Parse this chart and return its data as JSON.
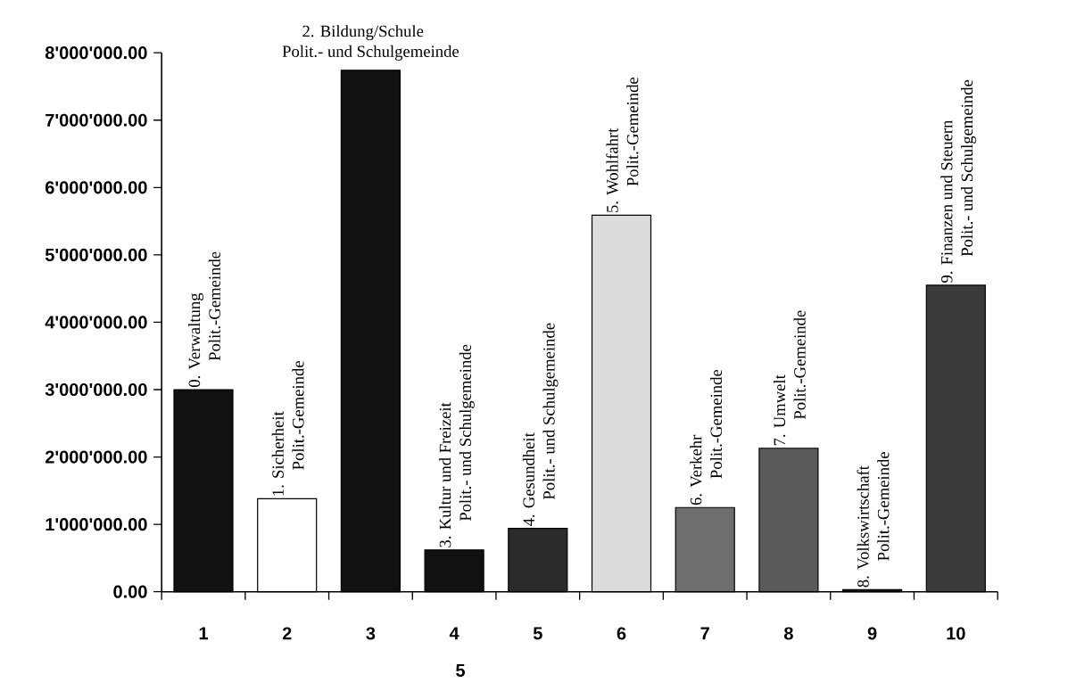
{
  "chart_data": {
    "type": "bar",
    "categories": [
      "1",
      "2",
      "3",
      "4",
      "5",
      "6",
      "7",
      "8",
      "9",
      "10"
    ],
    "values": [
      3000000,
      1380000,
      7740000,
      620000,
      940000,
      5590000,
      1250000,
      2130000,
      30000,
      4550000
    ],
    "colors": [
      "#111111",
      "#ffffff",
      "#111111",
      "#111111",
      "#2b2b2b",
      "#dcdcdc",
      "#6e6e6e",
      "#5a5a5a",
      "#111111",
      "#3a3a3a"
    ],
    "ylim": [
      0,
      8000000
    ],
    "yticks": [
      {
        "value": 0,
        "label": "0.00"
      },
      {
        "value": 1000000,
        "label": "1'000'000.00"
      },
      {
        "value": 2000000,
        "label": "2'000'000.00"
      },
      {
        "value": 3000000,
        "label": "3'000'000.00"
      },
      {
        "value": 4000000,
        "label": "4'000'000.00"
      },
      {
        "value": 5000000,
        "label": "5'000'000.00"
      },
      {
        "value": 6000000,
        "label": "6'000'000.00"
      },
      {
        "value": 7000000,
        "label": "7'000'000.00"
      },
      {
        "value": 8000000,
        "label": "8'000'000.00"
      }
    ],
    "annotations": [
      {
        "text": "0. Verwaltung",
        "x": "1",
        "y": 3000000
      },
      {
        "text": "Polit.-Gemeinde",
        "x": "1",
        "y": 3000000
      },
      {
        "text": "1. Sicherheit",
        "x": "2",
        "y": 1380000
      },
      {
        "text": "Polit.-Gemeinde",
        "x": "2",
        "y": 1380000
      },
      {
        "text": "2. Bildung/Schule",
        "x": "3",
        "y": 7740000
      },
      {
        "text": "Polit.- und Schulgemeinde",
        "x": "3",
        "y": 7740000
      },
      {
        "text": "3. Kultur und Freizeit",
        "x": "4",
        "y": 620000
      },
      {
        "text": "Polit.- und Schulgemeinde",
        "x": "4",
        "y": 620000
      },
      {
        "text": "4. Gesundheit",
        "x": "5",
        "y": 940000
      },
      {
        "text": "Polit.- und Schulgemeinde",
        "x": "5",
        "y": 940000
      },
      {
        "text": "5. Wohlfahrt",
        "x": "6",
        "y": 5590000
      },
      {
        "text": "Polit.-Gemeinde",
        "x": "6",
        "y": 5590000
      },
      {
        "text": "6. Verkehr",
        "x": "7",
        "y": 1250000
      },
      {
        "text": "Polit.-Gemeinde",
        "x": "7",
        "y": 1250000
      },
      {
        "text": "7. Umwelt",
        "x": "8",
        "y": 2130000
      },
      {
        "text": "Polit.-Gemeinde",
        "x": "8",
        "y": 2130000
      },
      {
        "text": "8. Volkswirtschaft",
        "x": "9",
        "y": 30000
      },
      {
        "text": "Polit.-Gemeinde",
        "x": "9",
        "y": 30000
      },
      {
        "text": "9. Finanzen und Steuern",
        "x": "10",
        "y": 4550000
      },
      {
        "text": "Polit.- und Schulgemeinde",
        "x": "10",
        "y": 4550000
      },
      "5"
    ]
  }
}
